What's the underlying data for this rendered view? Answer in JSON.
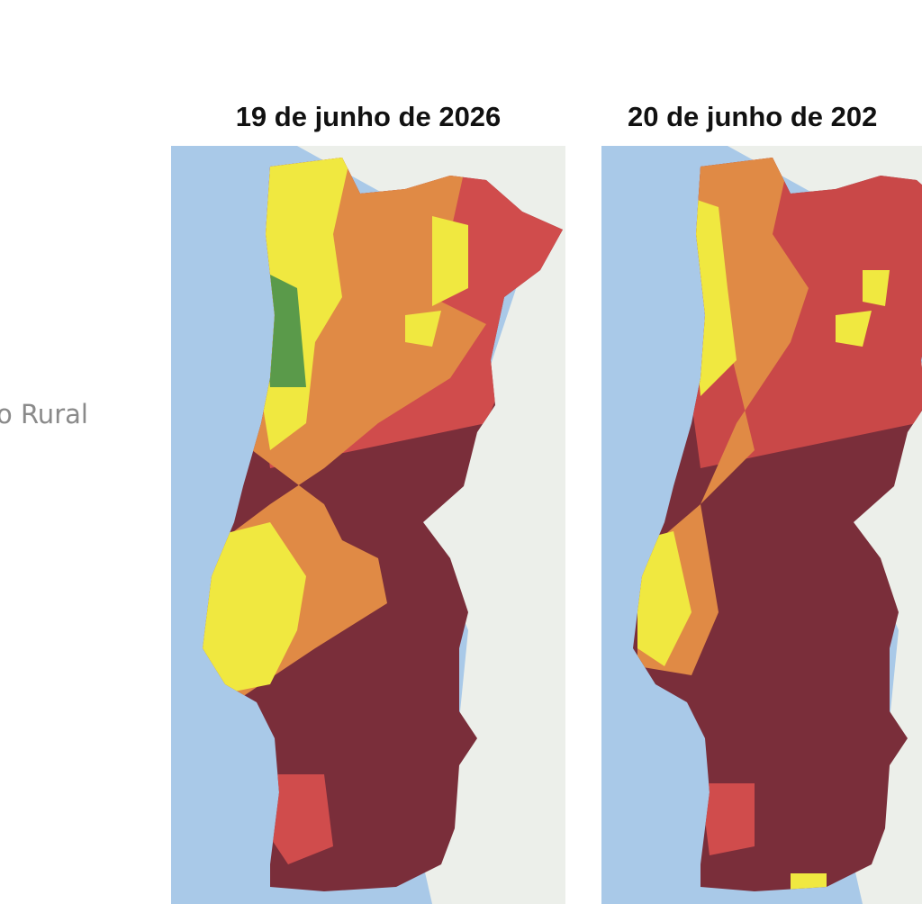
{
  "side_label": "o Rural",
  "maps": [
    {
      "title": "19 de junho de 2026"
    },
    {
      "title": "20 de junho de 202"
    }
  ]
}
